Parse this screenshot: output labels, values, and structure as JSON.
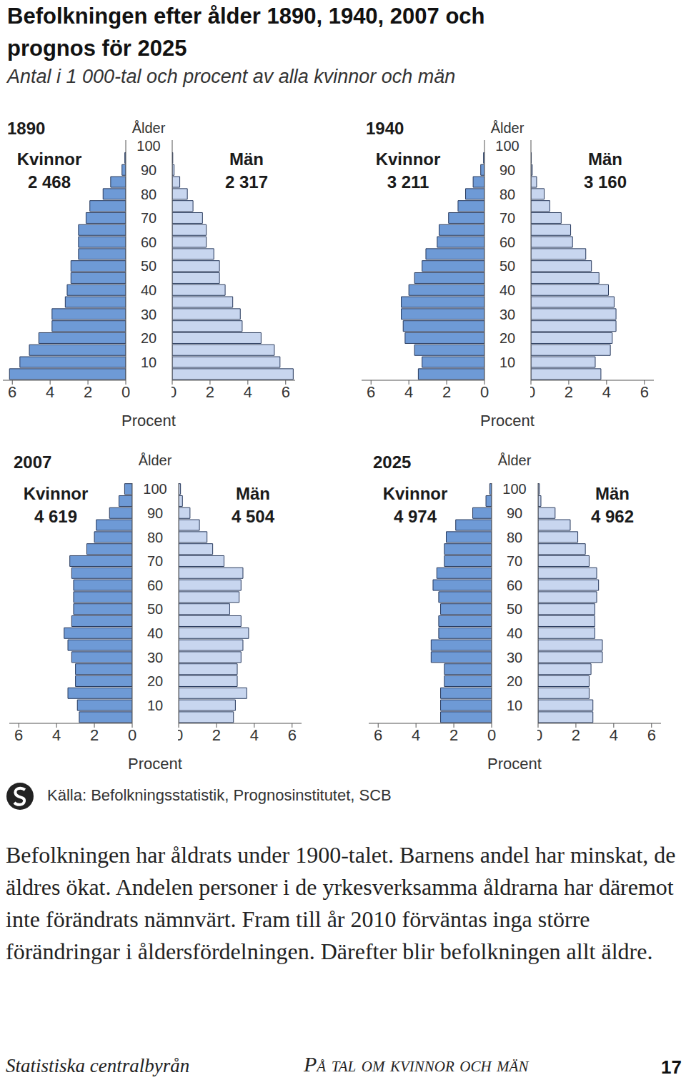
{
  "title": "Befolkningen efter ålder 1890, 1940, 2007 och prognos för 2025",
  "subtitle": "Antal i 1 000-tal och procent av alla kvinnor och män",
  "chart_data": [
    {
      "type": "bar",
      "orientation": "horizontal",
      "title": "1890",
      "y_label": "Ålder",
      "x_label": "Procent",
      "categories": [
        null,
        "10",
        null,
        "20",
        null,
        "30",
        null,
        "40",
        null,
        "50",
        null,
        "60",
        null,
        "70",
        null,
        "80",
        null,
        "90",
        null,
        "100"
      ],
      "xlim": [
        0,
        6.5
      ],
      "xticks": [
        0,
        2,
        4,
        6
      ],
      "series": [
        {
          "name": "Kvinnor",
          "total": {
            "value": 2468,
            "label": "2 468"
          },
          "color": "#6e9ad6",
          "values": [
            6.15,
            5.6,
            5.1,
            4.6,
            3.9,
            3.9,
            3.2,
            3.1,
            2.9,
            2.9,
            2.5,
            2.5,
            2.5,
            2.1,
            1.9,
            1.2,
            0.8,
            0.2,
            0.05,
            0
          ]
        },
        {
          "name": "Män",
          "total": {
            "value": 2317,
            "label": "2 317"
          },
          "color": "#c8d6ef",
          "values": [
            6.4,
            5.7,
            5.4,
            4.7,
            3.7,
            3.6,
            3.2,
            2.8,
            2.5,
            2.5,
            2.2,
            1.8,
            1.8,
            1.6,
            1.1,
            0.8,
            0.4,
            0.1,
            0.03,
            0
          ]
        }
      ]
    },
    {
      "type": "bar",
      "orientation": "horizontal",
      "title": "1940",
      "y_label": "Ålder",
      "x_label": "Procent",
      "categories": [
        null,
        "10",
        null,
        "20",
        null,
        "30",
        null,
        "40",
        null,
        "50",
        null,
        "60",
        null,
        "70",
        null,
        "80",
        null,
        "90",
        null,
        "100"
      ],
      "xlim": [
        0,
        6.5
      ],
      "xticks": [
        0,
        2,
        4,
        6
      ],
      "series": [
        {
          "name": "Kvinnor",
          "total": {
            "value": 3211,
            "label": "3 211"
          },
          "color": "#6e9ad6",
          "values": [
            3.5,
            3.3,
            3.7,
            4.2,
            4.3,
            4.4,
            4.4,
            4.0,
            3.7,
            3.3,
            3.1,
            2.5,
            2.4,
            1.9,
            1.4,
            1.0,
            0.6,
            0.2,
            0.05,
            0
          ]
        },
        {
          "name": "Män",
          "total": {
            "value": 3160,
            "label": "3 160"
          },
          "color": "#c8d6ef",
          "values": [
            3.7,
            3.4,
            4.2,
            4.3,
            4.5,
            4.5,
            4.4,
            4.1,
            3.6,
            3.2,
            2.9,
            2.2,
            2.1,
            1.6,
            1.0,
            0.7,
            0.3,
            0.07,
            0.02,
            0
          ]
        }
      ]
    },
    {
      "type": "bar",
      "orientation": "horizontal",
      "title": "2007",
      "y_label": "Ålder",
      "x_label": "Procent",
      "categories": [
        null,
        "10",
        null,
        "20",
        null,
        "30",
        null,
        "40",
        null,
        "50",
        null,
        "60",
        null,
        "70",
        null,
        "80",
        null,
        "90",
        null,
        "100"
      ],
      "xlim": [
        0,
        6.5
      ],
      "xticks": [
        0,
        2,
        4,
        6
      ],
      "series": [
        {
          "name": "Kvinnor",
          "total": {
            "value": 4619,
            "label": "4 619"
          },
          "color": "#6e9ad6",
          "values": [
            2.8,
            2.9,
            3.4,
            3.0,
            3.0,
            3.2,
            3.4,
            3.6,
            3.2,
            3.1,
            3.1,
            3.1,
            3.2,
            3.3,
            2.4,
            2.0,
            1.9,
            1.2,
            0.7,
            0.4
          ]
        },
        {
          "name": "Män",
          "total": {
            "value": 4504,
            "label": "4 504"
          },
          "color": "#c8d6ef",
          "values": [
            2.9,
            3.0,
            3.6,
            3.1,
            3.1,
            3.3,
            3.4,
            3.7,
            3.3,
            2.7,
            3.2,
            3.3,
            3.4,
            2.4,
            1.8,
            1.5,
            1.1,
            0.6,
            0.2,
            0.1
          ]
        }
      ]
    },
    {
      "type": "bar",
      "orientation": "horizontal",
      "title": "2025",
      "y_label": "Ålder",
      "x_label": "Procent",
      "categories": [
        null,
        "10",
        null,
        "20",
        null,
        "30",
        null,
        "40",
        null,
        "50",
        null,
        "60",
        null,
        "70",
        null,
        "80",
        null,
        "90",
        null,
        "100"
      ],
      "xlim": [
        0,
        6.5
      ],
      "xticks": [
        0,
        2,
        4,
        6
      ],
      "series": [
        {
          "name": "Kvinnor",
          "total": {
            "value": 4974,
            "label": "4 974"
          },
          "color": "#6e9ad6",
          "values": [
            2.7,
            2.7,
            2.7,
            2.5,
            2.5,
            3.2,
            3.2,
            2.8,
            2.8,
            2.7,
            2.8,
            3.1,
            2.9,
            2.5,
            2.5,
            2.4,
            1.9,
            1.0,
            0.3,
            0.1
          ]
        },
        {
          "name": "Män",
          "total": {
            "value": 4962,
            "label": "4 962"
          },
          "color": "#c8d6ef",
          "values": [
            2.9,
            2.9,
            2.7,
            2.7,
            2.8,
            3.4,
            3.4,
            3.0,
            3.0,
            3.0,
            3.1,
            3.2,
            3.1,
            2.7,
            2.5,
            2.1,
            1.7,
            0.9,
            0.15,
            0.07
          ]
        }
      ]
    }
  ],
  "source": "Källa: Befolkningsstatistik, Prognosinstitutet, SCB",
  "caption": "Befolkningen har åldrats under 1900-talet. Barnens andel har minskat, de äldres ökat. Andelen personer i de yrkesverksamma åldrarna har däremot inte förändrats nämnvärt. Fram till år 2010 förväntas inga större förändringar i åldersfördelningen. Därefter blir befolkningen allt äldre.",
  "footer": {
    "publisher": "Statistiska centralbyrån",
    "publication": "På tal om kvinnor och män",
    "page": "17"
  }
}
